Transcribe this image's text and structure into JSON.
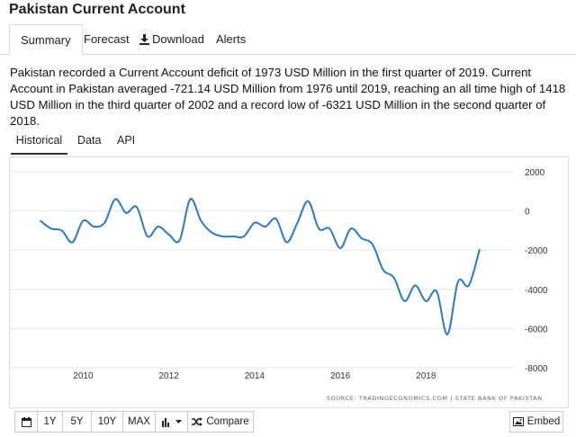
{
  "page": {
    "title": "Pakistan Current Account"
  },
  "top_tabs": [
    {
      "label": "Summary",
      "active": true
    },
    {
      "label": "Forecast"
    },
    {
      "label": "Download",
      "icon": "download-icon"
    },
    {
      "label": "Alerts"
    }
  ],
  "description": "Pakistan recorded a Current Account deficit of 1973 USD Million in the first quarter of 2019. Current Account in Pakistan averaged -721.14 USD Million from 1976 until 2019, reaching an all time high of 1418 USD Million in the third quarter of 2002 and a record low of -6321 USD Million in the second quarter of 2018.",
  "hist_tabs": [
    {
      "label": "Historical",
      "active": true
    },
    {
      "label": "Data"
    },
    {
      "label": "API"
    }
  ],
  "chart_data": {
    "type": "line",
    "xlim": [
      2008.5,
      2019.8
    ],
    "ylim": [
      -8000,
      2000
    ],
    "x_ticks": [
      2010,
      2012,
      2014,
      2016,
      2018
    ],
    "x_tick_labels": [
      "2010",
      "2012",
      "2014",
      "2016",
      "2018"
    ],
    "y_ticks": [
      2000,
      0,
      -2000,
      -4000,
      -6000,
      -8000
    ],
    "y_tick_labels": [
      "2000",
      "0",
      "-2000",
      "-4000",
      "-6000",
      "-8000"
    ],
    "series_color": "#2f7ab9",
    "grid": "horizontal",
    "source": "SOURCE: TRADINGECONOMICS.COM | STATE BANK OF PAKISTAN",
    "x": [
      2009.0,
      2009.25,
      2009.5,
      2009.75,
      2010.0,
      2010.25,
      2010.5,
      2010.75,
      2011.0,
      2011.25,
      2011.5,
      2011.75,
      2012.0,
      2012.25,
      2012.5,
      2012.75,
      2013.0,
      2013.25,
      2013.5,
      2013.75,
      2014.0,
      2014.25,
      2014.5,
      2014.75,
      2015.0,
      2015.25,
      2015.5,
      2015.75,
      2016.0,
      2016.25,
      2016.5,
      2016.75,
      2017.0,
      2017.25,
      2017.5,
      2017.75,
      2018.0,
      2018.25,
      2018.5,
      2018.75,
      2019.0,
      2019.25
    ],
    "values": [
      -500,
      -900,
      -1000,
      -1600,
      -500,
      -800,
      -600,
      600,
      -100,
      200,
      -1300,
      -800,
      -1200,
      -1500,
      600,
      -500,
      -1100,
      -1300,
      -1300,
      -1300,
      -600,
      -800,
      -400,
      -1600,
      -600,
      500,
      -900,
      -900,
      -1900,
      -900,
      -1400,
      -1700,
      -3000,
      -3400,
      -4600,
      -3800,
      -4600,
      -4100,
      -6300,
      -3600,
      -3800,
      -1973
    ]
  },
  "toolbar": {
    "calendar_icon": "calendar-icon",
    "ranges": [
      "1Y",
      "5Y",
      "10Y",
      "MAX"
    ],
    "chart_type_icon": "bar-chart-icon",
    "compare_label": "Compare",
    "compare_icon": "shuffle-icon"
  },
  "embed": {
    "label": "Embed",
    "icon": "image-icon"
  }
}
